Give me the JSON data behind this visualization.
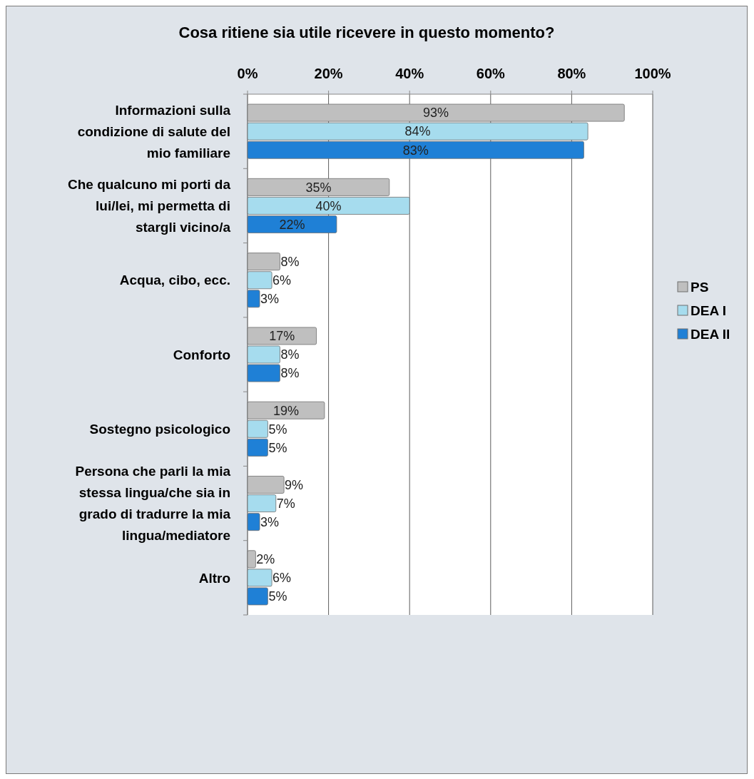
{
  "chart_data": {
    "type": "bar",
    "orientation": "horizontal",
    "title": "Cosa ritiene sia utile ricevere in questo momento?",
    "categories": [
      "Informazioni sulla condizione di salute del mio familiare",
      "Che qualcuno mi porti da lui/lei, mi permetta di stargli vicino/a",
      "Acqua, cibo, ecc.",
      "Conforto",
      "Sostegno psicologico",
      "Persona che parli la mia stessa lingua/che sia in grado di tradurre la mia lingua/mediatore",
      "Altro"
    ],
    "series": [
      {
        "name": "PS",
        "color": "#bfbfbf",
        "values": [
          93,
          35,
          8,
          17,
          19,
          9,
          2
        ],
        "value_labels": [
          "93%",
          "35%",
          "8%",
          "17%",
          "19%",
          "9%",
          "2%"
        ]
      },
      {
        "name": "DEA I",
        "color": "#a6dcee",
        "values": [
          84,
          40,
          6,
          8,
          5,
          7,
          6
        ],
        "value_labels": [
          "84%",
          "40%",
          "6%",
          "8%",
          "5%",
          "7%",
          "6%"
        ]
      },
      {
        "name": "DEA II",
        "color": "#1f80d6",
        "values": [
          83,
          22,
          3,
          8,
          5,
          3,
          5
        ],
        "value_labels": [
          "83%",
          "22%",
          "3%",
          "8%",
          "5%",
          "3%",
          "5%"
        ]
      }
    ],
    "xlim": [
      0,
      100
    ],
    "xticks": [
      {
        "value": 0,
        "label": "0%"
      },
      {
        "value": 20,
        "label": "20%"
      },
      {
        "value": 40,
        "label": "40%"
      },
      {
        "value": 60,
        "label": "60%"
      },
      {
        "value": 80,
        "label": "80%"
      },
      {
        "value": 100,
        "label": "100%"
      }
    ],
    "grid": "x",
    "legend": "right"
  }
}
